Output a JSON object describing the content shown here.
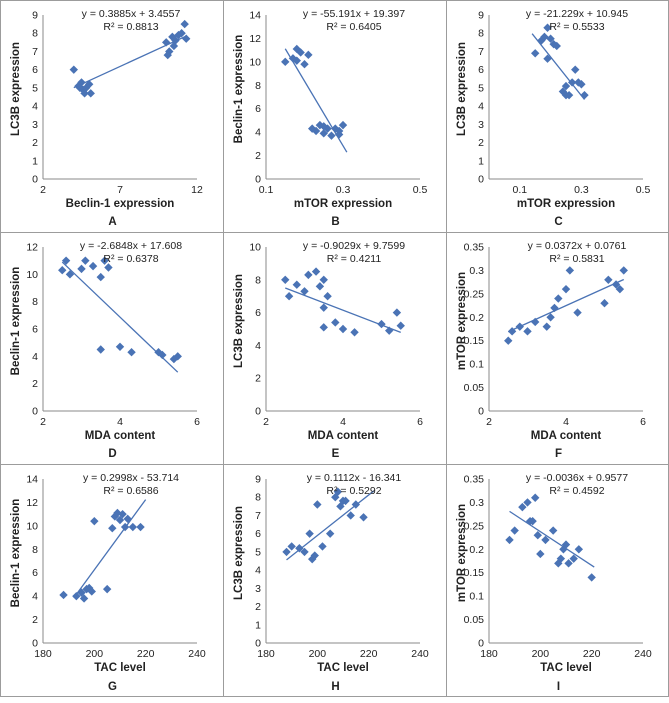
{
  "panels": [
    {
      "id": "A",
      "caption": "A",
      "equation": "y = 0.3885x + 3.4557",
      "r2": "R² = 0.8813",
      "xlabel": "Beclin-1 expression",
      "ylabel": "LC3B expression",
      "xlim": [
        2,
        12
      ],
      "ylim": [
        0,
        9
      ],
      "xticks": [
        2,
        7,
        12
      ],
      "xticklabels": [
        "2",
        "7",
        "12"
      ],
      "yticks": [
        0,
        1,
        2,
        3,
        4,
        5,
        6,
        7,
        8,
        9
      ],
      "yticklabels": [
        "0",
        "1",
        "2",
        "3",
        "4",
        "5",
        "6",
        "7",
        "8",
        "9"
      ],
      "trend": {
        "slope": 0.3885,
        "intercept": 3.4557,
        "x_range": [
          4,
          11.3
        ]
      },
      "points": [
        [
          4,
          6
        ],
        [
          4.3,
          5.1
        ],
        [
          4.5,
          5.3
        ],
        [
          4.6,
          4.9
        ],
        [
          4.8,
          5.0
        ],
        [
          5.0,
          5.2
        ],
        [
          4.7,
          4.7
        ],
        [
          5.1,
          4.7
        ],
        [
          4.4,
          5.0
        ],
        [
          10.0,
          7.5
        ],
        [
          10.2,
          7.0
        ],
        [
          10.4,
          7.8
        ],
        [
          10.6,
          7.6
        ],
        [
          10.8,
          7.9
        ],
        [
          11.0,
          8.0
        ],
        [
          11.2,
          8.5
        ],
        [
          11.3,
          7.7
        ],
        [
          10.1,
          6.8
        ],
        [
          10.5,
          7.3
        ]
      ]
    },
    {
      "id": "B",
      "caption": "B",
      "equation": "y = -55.191x + 19.397",
      "r2": "R² = 0.6405",
      "xlabel": "mTOR expression",
      "ylabel": "Beclin-1 expression",
      "xlim": [
        0.1,
        0.5
      ],
      "ylim": [
        0,
        14
      ],
      "xticks": [
        0.1,
        0.3,
        0.5
      ],
      "xticklabels": [
        "0.1",
        "0.3",
        "0.5"
      ],
      "yticks": [
        0,
        2,
        4,
        6,
        8,
        10,
        12,
        14
      ],
      "yticklabels": [
        "0",
        "2",
        "4",
        "6",
        "8",
        "10",
        "12",
        "14"
      ],
      "trend": {
        "slope": -55.191,
        "intercept": 19.397,
        "x_range": [
          0.15,
          0.31
        ]
      },
      "points": [
        [
          0.15,
          10.0
        ],
        [
          0.17,
          10.3
        ],
        [
          0.18,
          11.1
        ],
        [
          0.19,
          10.8
        ],
        [
          0.2,
          9.8
        ],
        [
          0.21,
          10.6
        ],
        [
          0.18,
          10.1
        ],
        [
          0.22,
          4.3
        ],
        [
          0.23,
          4.1
        ],
        [
          0.24,
          4.6
        ],
        [
          0.25,
          3.9
        ],
        [
          0.26,
          4.3
        ],
        [
          0.27,
          3.7
        ],
        [
          0.28,
          4.3
        ],
        [
          0.29,
          4.1
        ],
        [
          0.3,
          4.6
        ],
        [
          0.25,
          4.5
        ],
        [
          0.29,
          3.8
        ]
      ]
    },
    {
      "id": "C",
      "caption": "C",
      "equation": "y = -21.229x + 10.945",
      "r2": "R² = 0.5533",
      "xlabel": "mTOR expression",
      "ylabel": "LC3B expression",
      "xlim": [
        0,
        0.5
      ],
      "ylim": [
        0,
        9
      ],
      "xticks": [
        0.1,
        0.3,
        0.5
      ],
      "xticklabels": [
        "0.1",
        "0.3",
        "0.5"
      ],
      "yticks": [
        0,
        1,
        2,
        3,
        4,
        5,
        6,
        7,
        8,
        9
      ],
      "yticklabels": [
        "0",
        "1",
        "2",
        "3",
        "4",
        "5",
        "6",
        "7",
        "8",
        "9"
      ],
      "trend": {
        "slope": -21.229,
        "intercept": 10.945,
        "x_range": [
          0.14,
          0.31
        ]
      },
      "points": [
        [
          0.15,
          6.9
        ],
        [
          0.17,
          7.6
        ],
        [
          0.18,
          7.8
        ],
        [
          0.19,
          8.3
        ],
        [
          0.2,
          7.7
        ],
        [
          0.21,
          7.4
        ],
        [
          0.19,
          6.6
        ],
        [
          0.22,
          7.3
        ],
        [
          0.24,
          4.8
        ],
        [
          0.25,
          5.1
        ],
        [
          0.26,
          4.6
        ],
        [
          0.27,
          5.3
        ],
        [
          0.28,
          6.0
        ],
        [
          0.3,
          5.2
        ],
        [
          0.31,
          4.6
        ],
        [
          0.29,
          5.3
        ],
        [
          0.25,
          4.6
        ]
      ]
    },
    {
      "id": "D",
      "caption": "D",
      "equation": "y = -2.6848x + 17.608",
      "r2": "R² = 0.6378",
      "xlabel": "MDA content",
      "ylabel": "Beclin-1 expression",
      "xlim": [
        2,
        6
      ],
      "ylim": [
        0,
        12
      ],
      "xticks": [
        2,
        4,
        6
      ],
      "xticklabels": [
        "2",
        "4",
        "6"
      ],
      "yticks": [
        0,
        2,
        4,
        6,
        8,
        10,
        12
      ],
      "yticklabels": [
        "0",
        "2",
        "4",
        "6",
        "8",
        "10",
        "12"
      ],
      "trend": {
        "slope": -2.6848,
        "intercept": 17.608,
        "x_range": [
          2.5,
          5.5
        ]
      },
      "points": [
        [
          2.5,
          10.3
        ],
        [
          2.6,
          11.0
        ],
        [
          2.7,
          10.0
        ],
        [
          3.0,
          10.4
        ],
        [
          3.1,
          11.0
        ],
        [
          3.3,
          10.6
        ],
        [
          3.5,
          9.8
        ],
        [
          3.6,
          11.0
        ],
        [
          3.7,
          10.5
        ],
        [
          3.5,
          4.5
        ],
        [
          4.0,
          4.7
        ],
        [
          4.3,
          4.3
        ],
        [
          5.0,
          4.3
        ],
        [
          5.1,
          4.1
        ],
        [
          5.4,
          3.8
        ],
        [
          5.5,
          4.0
        ]
      ]
    },
    {
      "id": "E",
      "caption": "E",
      "equation": "y = -0.9029x + 9.7599",
      "r2": "R² = 0.4211",
      "xlabel": "MDA content",
      "ylabel": "LC3B expression",
      "xlim": [
        2,
        6
      ],
      "ylim": [
        0,
        10
      ],
      "xticks": [
        2,
        4,
        6
      ],
      "xticklabels": [
        "2",
        "4",
        "6"
      ],
      "yticks": [
        0,
        2,
        4,
        6,
        8,
        10
      ],
      "yticklabels": [
        "0",
        "2",
        "4",
        "6",
        "8",
        "10"
      ],
      "trend": {
        "slope": -0.9029,
        "intercept": 9.7599,
        "x_range": [
          2.5,
          5.5
        ]
      },
      "points": [
        [
          2.5,
          8.0
        ],
        [
          2.6,
          7.0
        ],
        [
          2.8,
          7.7
        ],
        [
          3.0,
          7.3
        ],
        [
          3.1,
          8.3
        ],
        [
          3.3,
          8.5
        ],
        [
          3.4,
          7.6
        ],
        [
          3.5,
          8.0
        ],
        [
          3.5,
          6.3
        ],
        [
          3.6,
          7.0
        ],
        [
          3.5,
          5.1
        ],
        [
          3.8,
          5.4
        ],
        [
          4.0,
          5.0
        ],
        [
          4.3,
          4.8
        ],
        [
          5.0,
          5.3
        ],
        [
          5.2,
          4.9
        ],
        [
          5.4,
          6.0
        ],
        [
          5.5,
          5.2
        ]
      ]
    },
    {
      "id": "F",
      "caption": "F",
      "equation": "y = 0.0372x + 0.0761",
      "r2": "R² = 0.5831",
      "xlabel": "MDA content",
      "ylabel": "mTOR expression",
      "xlim": [
        2,
        6
      ],
      "ylim": [
        0,
        0.35
      ],
      "xticks": [
        2,
        4,
        6
      ],
      "xticklabels": [
        "2",
        "4",
        "6"
      ],
      "yticks": [
        0,
        0.05,
        0.1,
        0.15,
        0.2,
        0.25,
        0.3,
        0.35
      ],
      "yticklabels": [
        "0",
        "0.05",
        "0.1",
        "0.15",
        "0.2",
        "0.25",
        "0.3",
        "0.35"
      ],
      "trend": {
        "slope": 0.0372,
        "intercept": 0.0761,
        "x_range": [
          2.5,
          5.5
        ]
      },
      "points": [
        [
          2.5,
          0.15
        ],
        [
          2.6,
          0.17
        ],
        [
          2.8,
          0.18
        ],
        [
          3.0,
          0.17
        ],
        [
          3.2,
          0.19
        ],
        [
          3.5,
          0.18
        ],
        [
          3.6,
          0.2
        ],
        [
          3.7,
          0.22
        ],
        [
          3.8,
          0.24
        ],
        [
          4.0,
          0.26
        ],
        [
          4.1,
          0.3
        ],
        [
          4.3,
          0.21
        ],
        [
          5.0,
          0.23
        ],
        [
          5.1,
          0.28
        ],
        [
          5.3,
          0.27
        ],
        [
          5.4,
          0.26
        ],
        [
          5.5,
          0.3
        ]
      ]
    },
    {
      "id": "G",
      "caption": "G",
      "equation": "y = 0.2998x - 53.714",
      "r2": "R² = 0.6586",
      "xlabel": "TAC level",
      "ylabel": "Beclin-1 expression",
      "xlim": [
        180,
        240
      ],
      "ylim": [
        0,
        14
      ],
      "xticks": [
        180,
        200,
        220,
        240
      ],
      "xticklabels": [
        "180",
        "200",
        "220",
        "240"
      ],
      "yticks": [
        0,
        2,
        4,
        6,
        8,
        10,
        12,
        14
      ],
      "yticklabels": [
        "0",
        "2",
        "4",
        "6",
        "8",
        "10",
        "12",
        "14"
      ],
      "trend": {
        "slope": 0.2998,
        "intercept": -53.714,
        "x_range": [
          192,
          220
        ]
      },
      "points": [
        [
          188,
          4.1
        ],
        [
          193,
          4.0
        ],
        [
          195,
          4.3
        ],
        [
          196,
          3.8
        ],
        [
          197,
          4.6
        ],
        [
          198,
          4.7
        ],
        [
          199,
          4.4
        ],
        [
          200,
          10.4
        ],
        [
          205,
          4.6
        ],
        [
          207,
          9.8
        ],
        [
          208,
          10.8
        ],
        [
          209,
          11.1
        ],
        [
          210,
          10.5
        ],
        [
          211,
          11.0
        ],
        [
          212,
          9.9
        ],
        [
          213,
          10.6
        ],
        [
          215,
          9.9
        ],
        [
          218,
          9.9
        ]
      ]
    },
    {
      "id": "H",
      "caption": "H",
      "equation": "y = 0.1112x - 16.341",
      "r2": "R² = 0.5292",
      "xlabel": "TAC level",
      "ylabel": "LC3B expression",
      "xlim": [
        180,
        240
      ],
      "ylim": [
        0,
        9
      ],
      "xticks": [
        180,
        200,
        220,
        240
      ],
      "xticklabels": [
        "180",
        "200",
        "220",
        "240"
      ],
      "yticks": [
        0,
        1,
        2,
        3,
        4,
        5,
        6,
        7,
        8,
        9
      ],
      "yticklabels": [
        "0",
        "1",
        "2",
        "3",
        "4",
        "5",
        "6",
        "7",
        "8",
        "9"
      ],
      "trend": {
        "slope": 0.1112,
        "intercept": -16.341,
        "x_range": [
          188,
          222
        ]
      },
      "points": [
        [
          188,
          5.0
        ],
        [
          190,
          5.3
        ],
        [
          193,
          5.2
        ],
        [
          195,
          5.0
        ],
        [
          197,
          6.0
        ],
        [
          198,
          4.6
        ],
        [
          199,
          4.8
        ],
        [
          200,
          7.6
        ],
        [
          202,
          5.3
        ],
        [
          205,
          6.0
        ],
        [
          207,
          8.0
        ],
        [
          208,
          8.3
        ],
        [
          209,
          7.5
        ],
        [
          210,
          7.8
        ],
        [
          211,
          7.8
        ],
        [
          213,
          7.0
        ],
        [
          215,
          7.6
        ],
        [
          218,
          6.9
        ]
      ]
    },
    {
      "id": "I",
      "caption": "I",
      "equation": "y = -0.0036x + 0.9577",
      "r2": "R² = 0.4592",
      "xlabel": "TAC level",
      "ylabel": "mTOR expression",
      "xlim": [
        180,
        240
      ],
      "ylim": [
        0,
        0.35
      ],
      "xticks": [
        180,
        200,
        220,
        240
      ],
      "xticklabels": [
        "180",
        "200",
        "220",
        "240"
      ],
      "yticks": [
        0,
        0.05,
        0.1,
        0.15,
        0.2,
        0.25,
        0.3,
        0.35
      ],
      "yticklabels": [
        "0",
        "0.05",
        "0.1",
        "0.15",
        "0.2",
        "0.25",
        "0.3",
        "0.35"
      ],
      "trend": {
        "slope": -0.0036,
        "intercept": 0.9577,
        "x_range": [
          188,
          221
        ]
      },
      "points": [
        [
          188,
          0.22
        ],
        [
          190,
          0.24
        ],
        [
          193,
          0.29
        ],
        [
          195,
          0.3
        ],
        [
          196,
          0.26
        ],
        [
          197,
          0.26
        ],
        [
          198,
          0.31
        ],
        [
          199,
          0.23
        ],
        [
          200,
          0.19
        ],
        [
          202,
          0.22
        ],
        [
          205,
          0.24
        ],
        [
          207,
          0.17
        ],
        [
          208,
          0.18
        ],
        [
          209,
          0.2
        ],
        [
          210,
          0.21
        ],
        [
          211,
          0.17
        ],
        [
          213,
          0.18
        ],
        [
          215,
          0.2
        ],
        [
          220,
          0.14
        ]
      ]
    }
  ],
  "colors": {
    "marker": "#4a73b5",
    "trend": "#4a73b5",
    "axis": "#8a8a8a",
    "text": "#222222",
    "border": "#9c9c9c"
  },
  "chart_data": [
    {
      "type": "scatter",
      "title": "A",
      "xlabel": "Beclin-1 expression",
      "ylabel": "LC3B expression",
      "xlim": [
        2,
        12
      ],
      "ylim": [
        0,
        9
      ],
      "annotations": [
        "y = 0.3885x + 3.4557",
        "R² = 0.8813"
      ]
    },
    {
      "type": "scatter",
      "title": "B",
      "xlabel": "mTOR expression",
      "ylabel": "Beclin-1 expression",
      "xlim": [
        0.1,
        0.5
      ],
      "ylim": [
        0,
        14
      ],
      "annotations": [
        "y = -55.191x + 19.397",
        "R² = 0.6405"
      ]
    },
    {
      "type": "scatter",
      "title": "C",
      "xlabel": "mTOR expression",
      "ylabel": "LC3B expression",
      "xlim": [
        0,
        0.5
      ],
      "ylim": [
        0,
        9
      ],
      "annotations": [
        "y = -21.229x + 10.945",
        "R² = 0.5533"
      ]
    },
    {
      "type": "scatter",
      "title": "D",
      "xlabel": "MDA content",
      "ylabel": "Beclin-1 expression",
      "xlim": [
        2,
        6
      ],
      "ylim": [
        0,
        12
      ],
      "annotations": [
        "y = -2.6848x + 17.608",
        "R² = 0.6378"
      ]
    },
    {
      "type": "scatter",
      "title": "E",
      "xlabel": "MDA content",
      "ylabel": "LC3B expression",
      "xlim": [
        2,
        6
      ],
      "ylim": [
        0,
        10
      ],
      "annotations": [
        "y = -0.9029x + 9.7599",
        "R² = 0.4211"
      ]
    },
    {
      "type": "scatter",
      "title": "F",
      "xlabel": "MDA content",
      "ylabel": "mTOR expression",
      "xlim": [
        2,
        6
      ],
      "ylim": [
        0,
        0.35
      ],
      "annotations": [
        "y = 0.0372x + 0.0761",
        "R² = 0.5831"
      ]
    },
    {
      "type": "scatter",
      "title": "G",
      "xlabel": "TAC level",
      "ylabel": "Beclin-1 expression",
      "xlim": [
        180,
        240
      ],
      "ylim": [
        0,
        14
      ],
      "annotations": [
        "y = 0.2998x - 53.714",
        "R² = 0.6586"
      ]
    },
    {
      "type": "scatter",
      "title": "H",
      "xlabel": "TAC level",
      "ylabel": "LC3B expression",
      "xlim": [
        180,
        240
      ],
      "ylim": [
        0,
        9
      ],
      "annotations": [
        "y = 0.1112x - 16.341",
        "R² = 0.5292"
      ]
    },
    {
      "type": "scatter",
      "title": "I",
      "xlabel": "TAC level",
      "ylabel": "mTOR expression",
      "xlim": [
        180,
        240
      ],
      "ylim": [
        0,
        0.35
      ],
      "annotations": [
        "y = -0.0036x + 0.9577",
        "R² = 0.4592"
      ]
    }
  ]
}
